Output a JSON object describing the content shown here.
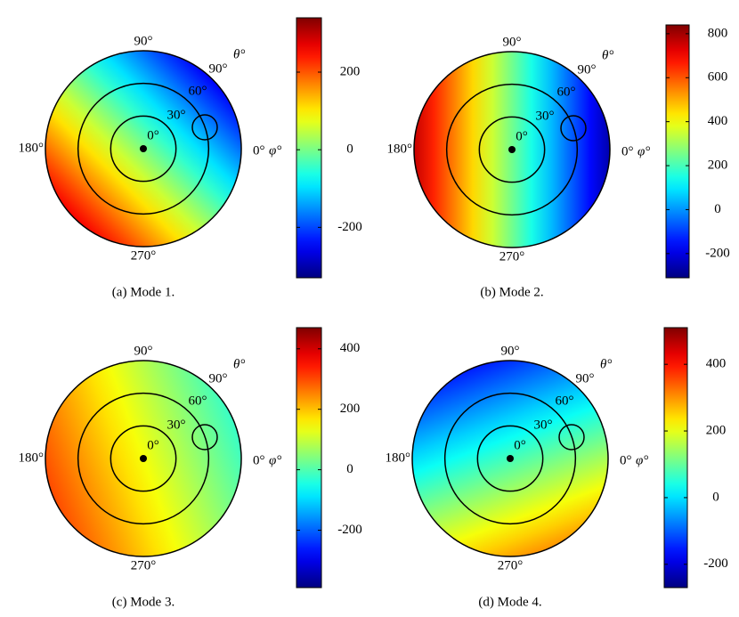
{
  "chart_data": [
    {
      "type": "polar-map",
      "caption": "(a) Mode 1.",
      "angle_labels": [
        "0°",
        "90°",
        "180°",
        "270°"
      ],
      "radial_labels": [
        "0°",
        "30°",
        "60°",
        "90°"
      ],
      "phi_label": "φ°",
      "theta_label": "θ°",
      "clim": [
        -330,
        340
      ],
      "cticks": [
        -200,
        0,
        200
      ],
      "field": {
        "direction": 225,
        "values": [
          -250,
          260
        ]
      }
    },
    {
      "type": "polar-map",
      "caption": "(b) Mode 2.",
      "angle_labels": [
        "0°",
        "90°",
        "180°",
        "270°"
      ],
      "radial_labels": [
        "0°",
        "30°",
        "60°",
        "90°"
      ],
      "phi_label": "φ°",
      "theta_label": "θ°",
      "clim": [
        -310,
        840
      ],
      "cticks": [
        -200,
        0,
        200,
        400,
        600,
        800
      ],
      "field": {
        "direction": 180,
        "values": [
          -260,
          760
        ]
      }
    },
    {
      "type": "polar-map",
      "caption": "(c) Mode 3.",
      "angle_labels": [
        "0°",
        "90°",
        "180°",
        "270°"
      ],
      "radial_labels": [
        "0°",
        "30°",
        "60°",
        "90°"
      ],
      "phi_label": "φ°",
      "theta_label": "θ°",
      "clim": [
        -390,
        470
      ],
      "cticks": [
        -200,
        0,
        200,
        400
      ],
      "field": {
        "direction": 200,
        "values": [
          -20,
          300
        ]
      }
    },
    {
      "type": "polar-map",
      "caption": "(d) Mode 4.",
      "angle_labels": [
        "0°",
        "90°",
        "180°",
        "270°"
      ],
      "radial_labels": [
        "0°",
        "30°",
        "60°",
        "90°"
      ],
      "phi_label": "φ°",
      "theta_label": "θ°",
      "clim": [
        -270,
        510
      ],
      "cticks": [
        -200,
        0,
        200,
        400
      ],
      "field": {
        "direction": 290,
        "values": [
          -150,
          300
        ]
      }
    }
  ]
}
